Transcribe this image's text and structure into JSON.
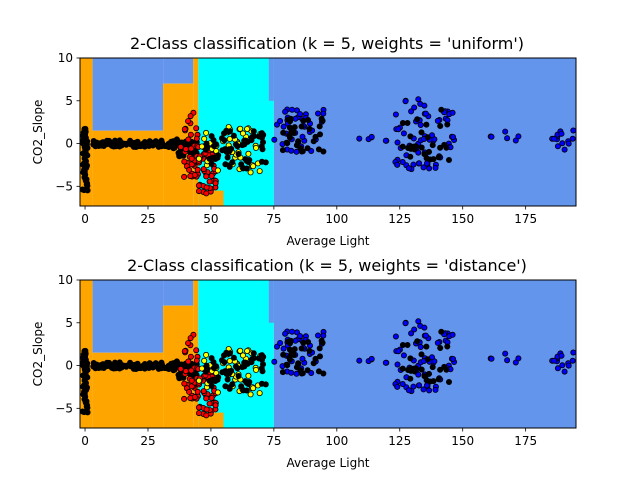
{
  "chart_data": [
    {
      "type": "scatter",
      "title": "2-Class classification (k = 5, weights = 'uniform')",
      "xlabel": "Average Light",
      "ylabel": "CO2_Slope",
      "xlim": [
        -2,
        195
      ],
      "ylim": [
        -7.3,
        10
      ],
      "xticks": [
        0,
        25,
        50,
        75,
        100,
        125,
        150,
        175
      ],
      "yticks": [
        -5,
        0,
        5,
        10
      ],
      "grid": false,
      "legend": "none",
      "background_regions": [
        {
          "color": "#ffa500",
          "x0": -2,
          "x1": 3,
          "y0": -7.3,
          "y1": 10
        },
        {
          "color": "#6495ed",
          "x0": 3,
          "x1": 31,
          "y0": 1.5,
          "y1": 10
        },
        {
          "color": "#ffa500",
          "x0": 3,
          "x1": 31,
          "y0": -7.3,
          "y1": 1.5
        },
        {
          "color": "#6495ed",
          "x0": 31,
          "x1": 43,
          "y0": 7,
          "y1": 10
        },
        {
          "color": "#ffa500",
          "x0": 31,
          "x1": 43,
          "y0": -7.3,
          "y1": 7
        },
        {
          "color": "#ffa500",
          "x0": 43,
          "x1": 45,
          "y0": -7.3,
          "y1": 10
        },
        {
          "color": "#00ffff",
          "x0": 45,
          "x1": 75,
          "y0": -7.3,
          "y1": 10
        },
        {
          "color": "#ffa500",
          "x0": 45,
          "x1": 55,
          "y0": -7.3,
          "y1": -5.5
        },
        {
          "color": "#6495ed",
          "x0": 73,
          "x1": 75,
          "y0": 5,
          "y1": 10
        },
        {
          "color": "#6495ed",
          "x0": 75,
          "x1": 195,
          "y0": -7.3,
          "y1": 10
        }
      ],
      "point_clusters": [
        {
          "color": "#000000",
          "x0": -1,
          "x1": 1,
          "y0": -5.5,
          "y1": 2,
          "n": 60
        },
        {
          "color": "#000000",
          "x0": 0,
          "x1": 35,
          "y0": -0.4,
          "y1": 0.4,
          "n": 80
        },
        {
          "color": "#000000",
          "x0": 33,
          "x1": 45,
          "y0": -1.5,
          "y1": 0.5,
          "n": 40
        },
        {
          "color": "#ff0000",
          "x0": 38,
          "x1": 45,
          "y0": -4,
          "y1": 4,
          "n": 40
        },
        {
          "color": "#ff0000",
          "x0": 45,
          "x1": 52,
          "y0": -6,
          "y1": 0,
          "n": 50
        },
        {
          "color": "#ffff00",
          "x0": 45,
          "x1": 70,
          "y0": -3.5,
          "y1": 2,
          "n": 50
        },
        {
          "color": "#000000",
          "x0": 48,
          "x1": 73,
          "y0": -3,
          "y1": 1.5,
          "n": 60
        },
        {
          "color": "#0000ff",
          "x0": 75,
          "x1": 95,
          "y0": -1,
          "y1": 4,
          "n": 40
        },
        {
          "color": "#000000",
          "x0": 78,
          "x1": 95,
          "y0": -1,
          "y1": 3,
          "n": 30
        },
        {
          "color": "#0000ff",
          "x0": 123,
          "x1": 147,
          "y0": -3,
          "y1": 5.3,
          "n": 70
        },
        {
          "color": "#000000",
          "x0": 125,
          "x1": 145,
          "y0": -2,
          "y1": 4,
          "n": 30
        },
        {
          "color": "#0000ff",
          "x0": 108,
          "x1": 120,
          "y0": 0,
          "y1": 1.5,
          "n": 6
        },
        {
          "color": "#0000ff",
          "x0": 160,
          "x1": 173,
          "y0": 0.3,
          "y1": 1.5,
          "n": 6
        },
        {
          "color": "#0000ff",
          "x0": 185,
          "x1": 194,
          "y0": -0.8,
          "y1": 1.6,
          "n": 14
        }
      ]
    },
    {
      "type": "scatter",
      "title": "2-Class classification (k = 5, weights = 'distance')",
      "xlabel": "Average Light",
      "ylabel": "CO2_Slope",
      "xlim": [
        -2,
        195
      ],
      "ylim": [
        -7.3,
        10
      ],
      "xticks": [
        0,
        25,
        50,
        75,
        100,
        125,
        150,
        175
      ],
      "yticks": [
        -5,
        0,
        5,
        10
      ],
      "grid": false,
      "legend": "none",
      "background_regions": [
        {
          "color": "#ffa500",
          "x0": -2,
          "x1": 3,
          "y0": -7.3,
          "y1": 10
        },
        {
          "color": "#6495ed",
          "x0": 3,
          "x1": 31,
          "y0": 1.5,
          "y1": 10
        },
        {
          "color": "#ffa500",
          "x0": 3,
          "x1": 31,
          "y0": -7.3,
          "y1": 1.5
        },
        {
          "color": "#6495ed",
          "x0": 31,
          "x1": 43,
          "y0": 7,
          "y1": 10
        },
        {
          "color": "#ffa500",
          "x0": 31,
          "x1": 43,
          "y0": -7.3,
          "y1": 7
        },
        {
          "color": "#ffa500",
          "x0": 43,
          "x1": 45,
          "y0": -7.3,
          "y1": 10
        },
        {
          "color": "#00ffff",
          "x0": 45,
          "x1": 75,
          "y0": -7.3,
          "y1": 10
        },
        {
          "color": "#ffa500",
          "x0": 45,
          "x1": 55,
          "y0": -7.3,
          "y1": -5.5
        },
        {
          "color": "#6495ed",
          "x0": 73,
          "x1": 75,
          "y0": 5,
          "y1": 10
        },
        {
          "color": "#6495ed",
          "x0": 75,
          "x1": 195,
          "y0": -7.3,
          "y1": 10
        }
      ],
      "point_clusters": [
        {
          "color": "#000000",
          "x0": -1,
          "x1": 1,
          "y0": -5.5,
          "y1": 2,
          "n": 60
        },
        {
          "color": "#000000",
          "x0": 0,
          "x1": 35,
          "y0": -0.4,
          "y1": 0.4,
          "n": 80
        },
        {
          "color": "#000000",
          "x0": 33,
          "x1": 45,
          "y0": -1.5,
          "y1": 0.5,
          "n": 40
        },
        {
          "color": "#ff0000",
          "x0": 38,
          "x1": 45,
          "y0": -4,
          "y1": 4,
          "n": 40
        },
        {
          "color": "#ff0000",
          "x0": 45,
          "x1": 52,
          "y0": -6,
          "y1": 0,
          "n": 50
        },
        {
          "color": "#ffff00",
          "x0": 45,
          "x1": 70,
          "y0": -3.5,
          "y1": 2,
          "n": 50
        },
        {
          "color": "#000000",
          "x0": 48,
          "x1": 73,
          "y0": -3,
          "y1": 1.5,
          "n": 60
        },
        {
          "color": "#0000ff",
          "x0": 75,
          "x1": 95,
          "y0": -1,
          "y1": 4,
          "n": 40
        },
        {
          "color": "#000000",
          "x0": 78,
          "x1": 95,
          "y0": -1,
          "y1": 3,
          "n": 30
        },
        {
          "color": "#0000ff",
          "x0": 123,
          "x1": 147,
          "y0": -3,
          "y1": 5.3,
          "n": 70
        },
        {
          "color": "#000000",
          "x0": 125,
          "x1": 145,
          "y0": -2,
          "y1": 4,
          "n": 30
        },
        {
          "color": "#0000ff",
          "x0": 108,
          "x1": 120,
          "y0": 0,
          "y1": 1.5,
          "n": 6
        },
        {
          "color": "#0000ff",
          "x0": 160,
          "x1": 173,
          "y0": 0.3,
          "y1": 1.5,
          "n": 6
        },
        {
          "color": "#0000ff",
          "x0": 185,
          "x1": 194,
          "y0": -0.8,
          "y1": 1.6,
          "n": 14
        }
      ]
    }
  ]
}
